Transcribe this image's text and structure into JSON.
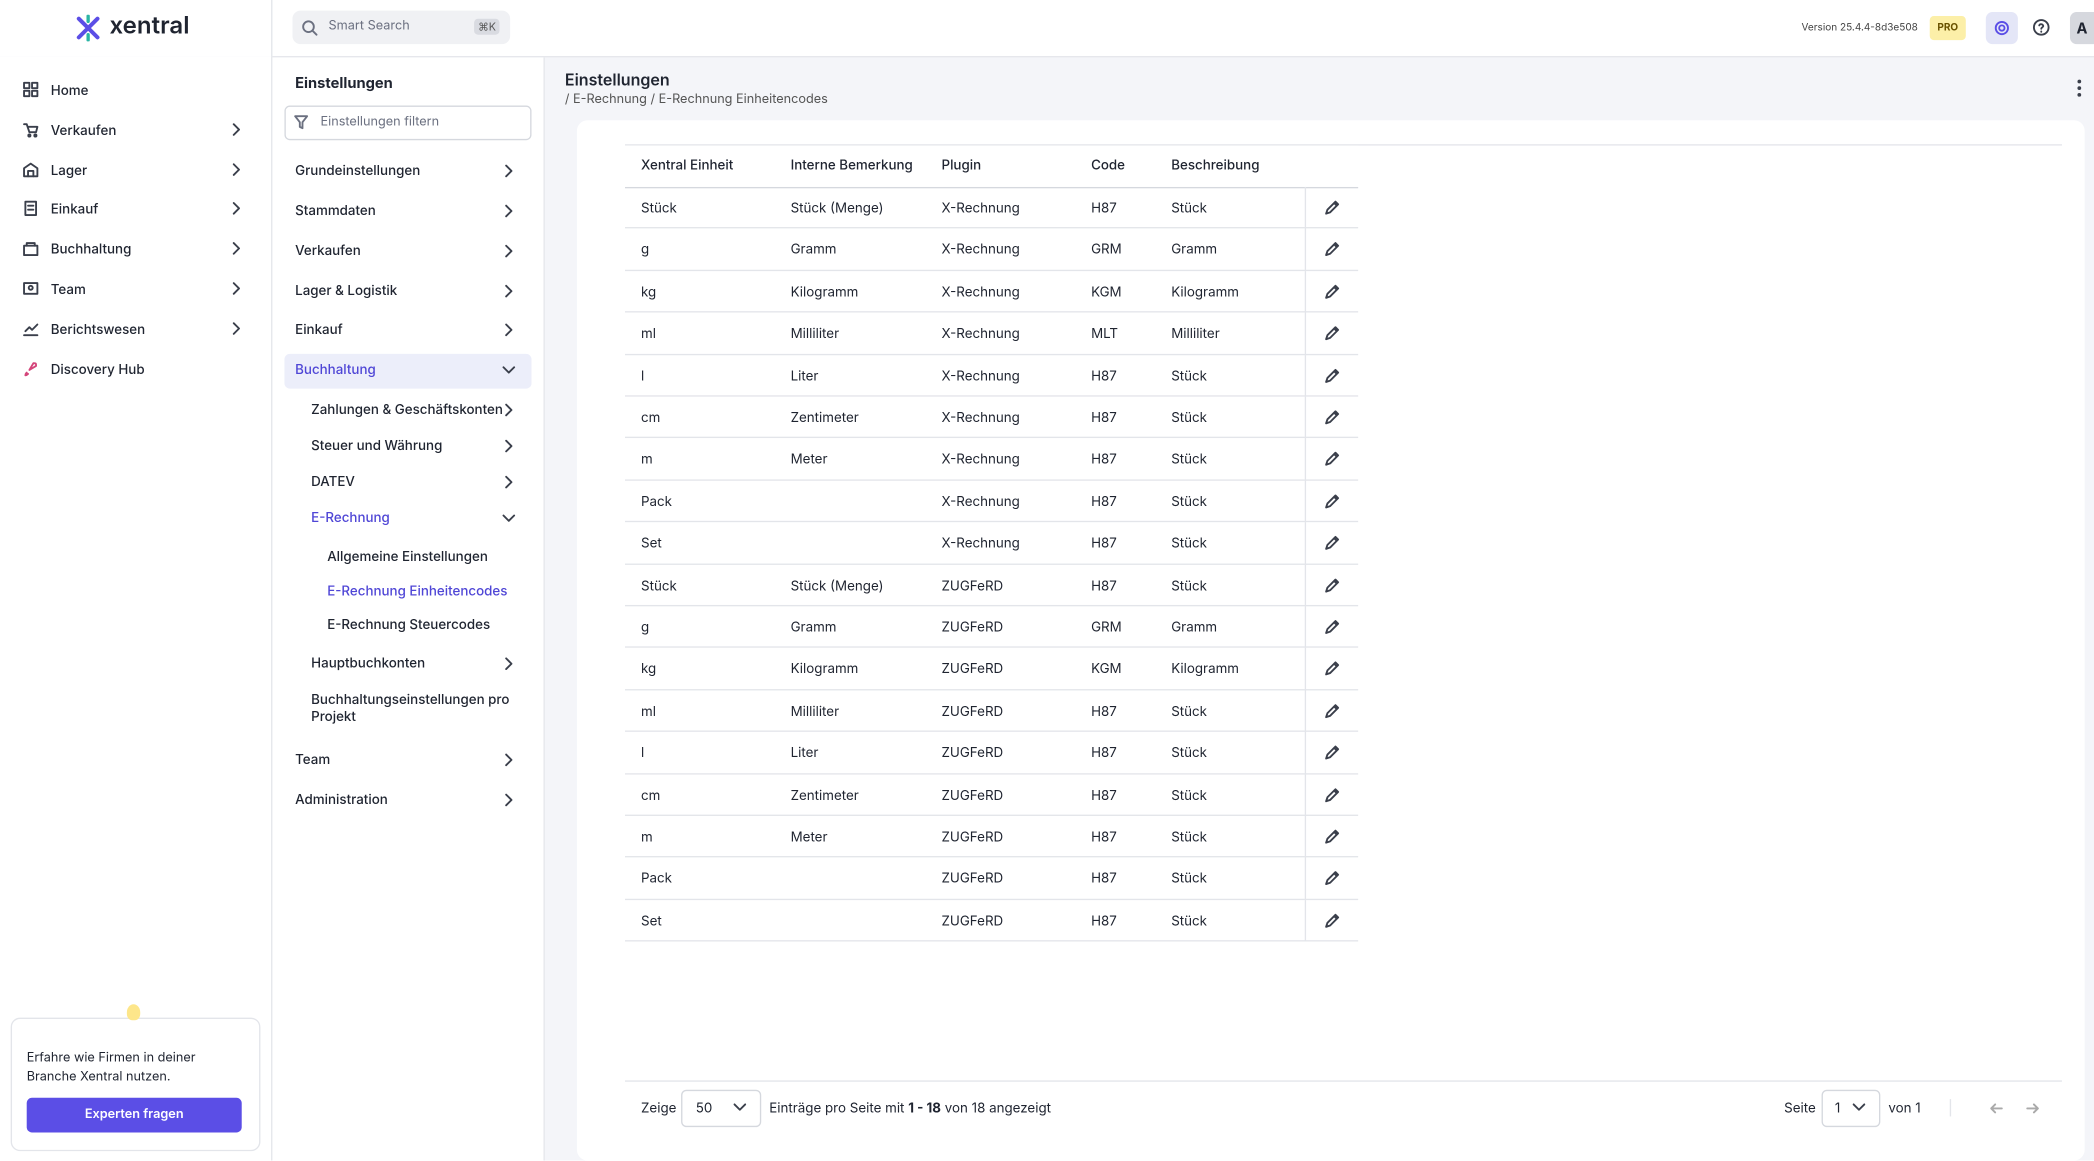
{
  "header": {
    "logo": "xentral",
    "search_placeholder": "Smart Search",
    "search_shortcut": "⌘K",
    "version": "Version 25.4.4-8d3e508",
    "badge": "PRO",
    "avatar": "A"
  },
  "sidebar": {
    "items": [
      {
        "label": "Home",
        "expandable": false
      },
      {
        "label": "Verkaufen",
        "expandable": true
      },
      {
        "label": "Lager",
        "expandable": true
      },
      {
        "label": "Einkauf",
        "expandable": true
      },
      {
        "label": "Buchhaltung",
        "expandable": true
      },
      {
        "label": "Team",
        "expandable": true
      },
      {
        "label": "Berichtswesen",
        "expandable": true
      },
      {
        "label": "Discovery Hub",
        "expandable": false
      }
    ],
    "promo": {
      "text": "Erfahre wie Firmen in deiner Branche Xentral nutzen.",
      "button": "Experten fragen"
    }
  },
  "settings": {
    "title": "Einstellungen",
    "filter_placeholder": "Einstellungen filtern",
    "items": [
      {
        "label": "Grundeinstellungen",
        "level": 0,
        "chevron": "right",
        "active": false
      },
      {
        "label": "Stammdaten",
        "level": 0,
        "chevron": "right",
        "active": false
      },
      {
        "label": "Verkaufen",
        "level": 0,
        "chevron": "right",
        "active": false
      },
      {
        "label": "Lager & Logistik",
        "level": 0,
        "chevron": "right",
        "active": false
      },
      {
        "label": "Einkauf",
        "level": 0,
        "chevron": "right",
        "active": false
      },
      {
        "label": "Buchhaltung",
        "level": 0,
        "chevron": "down",
        "active": true
      },
      {
        "label": "Zahlungen & Geschäftskonten",
        "level": 1,
        "chevron": "right",
        "active": false
      },
      {
        "label": "Steuer und Währung",
        "level": 1,
        "chevron": "right",
        "active": false
      },
      {
        "label": "DATEV",
        "level": 1,
        "chevron": "right",
        "active": false
      },
      {
        "label": "E-Rechnung",
        "level": 1,
        "chevron": "down",
        "active": true
      },
      {
        "label": "Allgemeine Einstellungen",
        "level": 2,
        "chevron": "none",
        "active": false
      },
      {
        "label": "E-Rechnung Einheitencodes",
        "level": 2,
        "chevron": "none",
        "active": true
      },
      {
        "label": "E-Rechnung Steuercodes",
        "level": 2,
        "chevron": "none",
        "active": false
      },
      {
        "label": "Hauptbuchkonten",
        "level": 1,
        "chevron": "right",
        "active": false
      },
      {
        "label": "Buchhaltungseinstellungen pro Projekt",
        "level": 1,
        "chevron": "none",
        "active": false
      },
      {
        "label": "Team",
        "level": 0,
        "chevron": "right",
        "active": false
      },
      {
        "label": "Administration",
        "level": 0,
        "chevron": "right",
        "active": false
      }
    ]
  },
  "content": {
    "title": "Einstellungen",
    "breadcrumb": "/ E-Rechnung / E-Rechnung Einheitencodes"
  },
  "table": {
    "columns": [
      "Xentral Einheit",
      "Interne Bemerkung",
      "Plugin",
      "Code",
      "Beschreibung"
    ],
    "rows": [
      [
        "Stück",
        "Stück (Menge)",
        "X-Rechnung",
        "H87",
        "Stück"
      ],
      [
        "g",
        "Gramm",
        "X-Rechnung",
        "GRM",
        "Gramm"
      ],
      [
        "kg",
        "Kilogramm",
        "X-Rechnung",
        "KGM",
        "Kilogramm"
      ],
      [
        "ml",
        "Milliliter",
        "X-Rechnung",
        "MLT",
        "Milliliter"
      ],
      [
        "l",
        "Liter",
        "X-Rechnung",
        "H87",
        "Stück"
      ],
      [
        "cm",
        "Zentimeter",
        "X-Rechnung",
        "H87",
        "Stück"
      ],
      [
        "m",
        "Meter",
        "X-Rechnung",
        "H87",
        "Stück"
      ],
      [
        "Pack",
        null,
        "X-Rechnung",
        "H87",
        "Stück"
      ],
      [
        "Set",
        null,
        "X-Rechnung",
        "H87",
        "Stück"
      ],
      [
        "Stück",
        "Stück (Menge)",
        "ZUGFeRD",
        "H87",
        "Stück"
      ],
      [
        "g",
        "Gramm",
        "ZUGFeRD",
        "GRM",
        "Gramm"
      ],
      [
        "kg",
        "Kilogramm",
        "ZUGFeRD",
        "KGM",
        "Kilogramm"
      ],
      [
        "ml",
        "Milliliter",
        "ZUGFeRD",
        "H87",
        "Stück"
      ],
      [
        "l",
        "Liter",
        "ZUGFeRD",
        "H87",
        "Stück"
      ],
      [
        "cm",
        "Zentimeter",
        "ZUGFeRD",
        "H87",
        "Stück"
      ],
      [
        "m",
        "Meter",
        "ZUGFeRD",
        "H87",
        "Stück"
      ],
      [
        "Pack",
        null,
        "ZUGFeRD",
        "H87",
        "Stück"
      ],
      [
        "Set",
        null,
        "ZUGFeRD",
        "H87",
        "Stück"
      ]
    ]
  },
  "pagination": {
    "show_label": "Zeige",
    "page_size": "50",
    "info_prefix": "Einträge pro Seite mit",
    "info_range": "1 - 18",
    "info_suffix": "von 18 angezeigt",
    "page_label": "Seite",
    "page": "1",
    "page_total": "von 1"
  }
}
